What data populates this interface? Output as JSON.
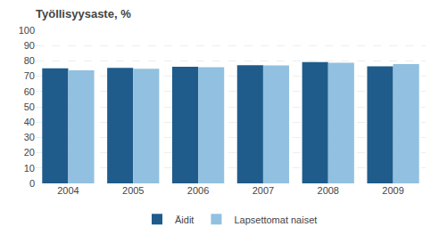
{
  "chart_data": {
    "type": "bar",
    "title": "Työllisyysaste, %",
    "categories": [
      "2004",
      "2005",
      "2006",
      "2007",
      "2008",
      "2009"
    ],
    "series": [
      {
        "name": "Äidit",
        "color": "#1F5C8B",
        "values": [
          75.2,
          75.4,
          76.2,
          77.2,
          79.2,
          76.4
        ]
      },
      {
        "name": "Lapsettomat naiset",
        "color": "#92C0E0",
        "values": [
          73.8,
          74.9,
          75.9,
          77.1,
          78.8,
          77.9
        ]
      }
    ],
    "ylim": [
      0,
      100
    ],
    "yticks": [
      0,
      10,
      20,
      30,
      40,
      50,
      60,
      70,
      80,
      90,
      100
    ],
    "grid": true,
    "legend": "bottom"
  }
}
